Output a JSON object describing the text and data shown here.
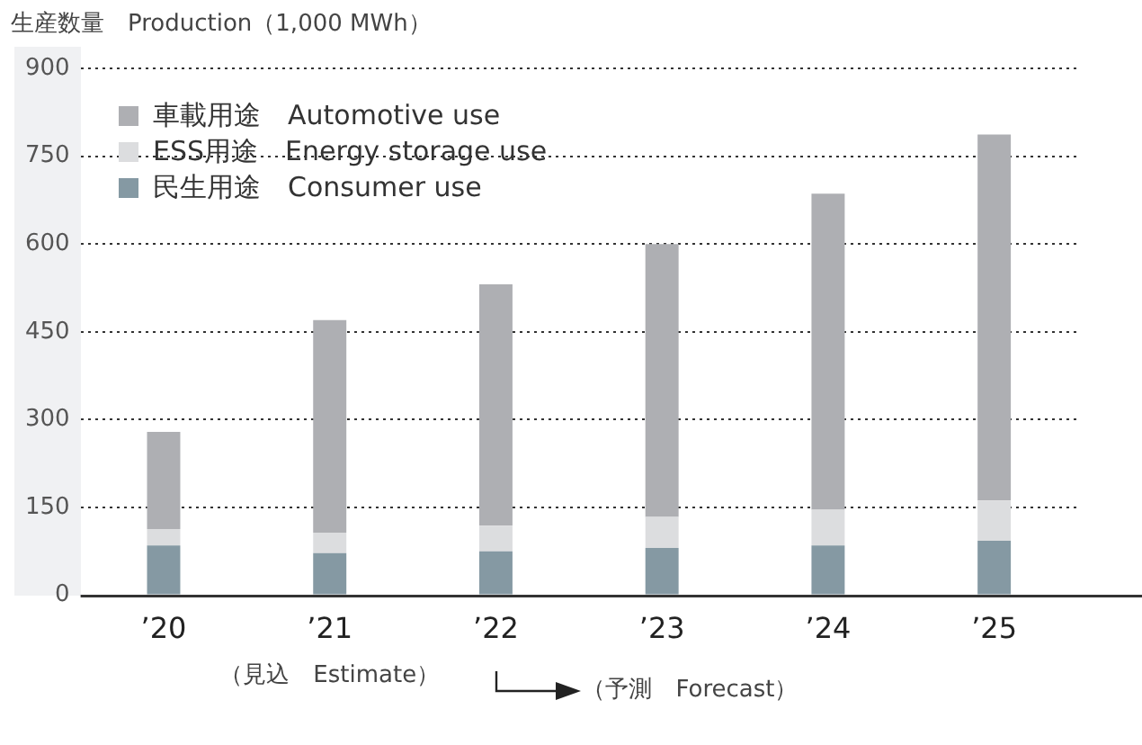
{
  "chart_data": {
    "type": "bar",
    "stacked": true,
    "ylabel": "生産数量　Production（1,000 MWh）",
    "categories": [
      "’20",
      "’21",
      "’22",
      "’23",
      "’24",
      "’25"
    ],
    "series": [
      {
        "name": "民生用途　Consumer use",
        "color": "#8599a3",
        "values": [
          85,
          72,
          75,
          81,
          85,
          93
        ]
      },
      {
        "name": "ESS用途　Energy storage use",
        "color": "#dcdddf",
        "values": [
          28,
          35,
          44,
          53,
          61,
          69
        ]
      },
      {
        "name": "車載用途　Automotive use",
        "color": "#aeafb3",
        "values": [
          166,
          363,
          412,
          466,
          540,
          625
        ]
      }
    ],
    "ylim": [
      0,
      900
    ],
    "yticks": [
      0,
      150,
      300,
      450,
      600,
      750,
      900
    ],
    "grid": "y",
    "legend": "top left",
    "annotations": [
      "（見込　Estimate）",
      "（予測　Forecast）"
    ]
  }
}
